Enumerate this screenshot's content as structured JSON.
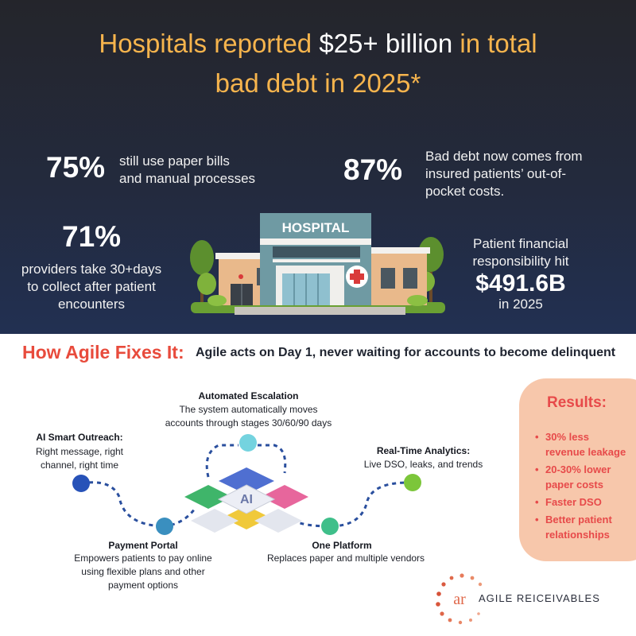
{
  "headline": {
    "part1": "Hospitals reported ",
    "part2": "$25+ billion",
    "part3": " in total",
    "part4": "bad debt in 2025*"
  },
  "stats": {
    "s75": {
      "value": "75%",
      "text_line1": "still use paper bills",
      "text_line2": "and manual processes"
    },
    "s87": {
      "value": "87%",
      "text_line1": "Bad debt now comes from",
      "text_line2": "insured patients’ out-of-",
      "text_line3": "pocket costs."
    },
    "s71": {
      "value": "71%",
      "text_line1": "providers take 30+days",
      "text_line2": "to collect after patient",
      "text_line3": "encounters"
    },
    "pfr": {
      "text_line1": "Patient financial",
      "text_line2": "responsibility hit",
      "value": "$491.6B",
      "text_line3": "in 2025"
    }
  },
  "hospital_sign": "HOSPITAL",
  "fix": {
    "title": "How Agile Fixes It:",
    "subtitle": "Agile acts on Day 1, never waiting for accounts to become delinquent"
  },
  "features": {
    "escalation": {
      "title": "Automated Escalation",
      "line1": "The system automatically moves",
      "line2": "accounts through stages 30/60/90 days"
    },
    "outreach": {
      "title": "AI Smart Outreach:",
      "line1": "Right message, right",
      "line2": "channel, right time"
    },
    "analytics": {
      "title": "Real-Time Analytics:",
      "line1": "Live DSO, leaks, and trends"
    },
    "portal": {
      "title": "Payment Portal",
      "line1": "Empowers patients to pay online",
      "line2": "using flexible plans and other",
      "line3": "payment options"
    },
    "platform": {
      "title": "One Platform",
      "line1": "Replaces paper and multiple vendors"
    }
  },
  "center_icon_label": "AI",
  "results": {
    "title": "Results:",
    "items": [
      {
        "l1": "30% less",
        "l2": "revenue leakage"
      },
      {
        "l1": "20-30% lower",
        "l2": "paper costs"
      },
      {
        "l1": "Faster DSO",
        "l2": ""
      },
      {
        "l1": "Better patient",
        "l2": "relationships"
      }
    ]
  },
  "logo": {
    "mark": "ar",
    "name": "AGILE REICEIVABLES"
  },
  "colors": {
    "headline_orange": "#f6b44d",
    "fix_red": "#e84b3c",
    "results_bg": "#f7c7ab",
    "dot_blue": "#2752b8",
    "dot_teal": "#3db0c6",
    "dot_green": "#7cc63a",
    "dot_mint": "#3fbf8a"
  }
}
